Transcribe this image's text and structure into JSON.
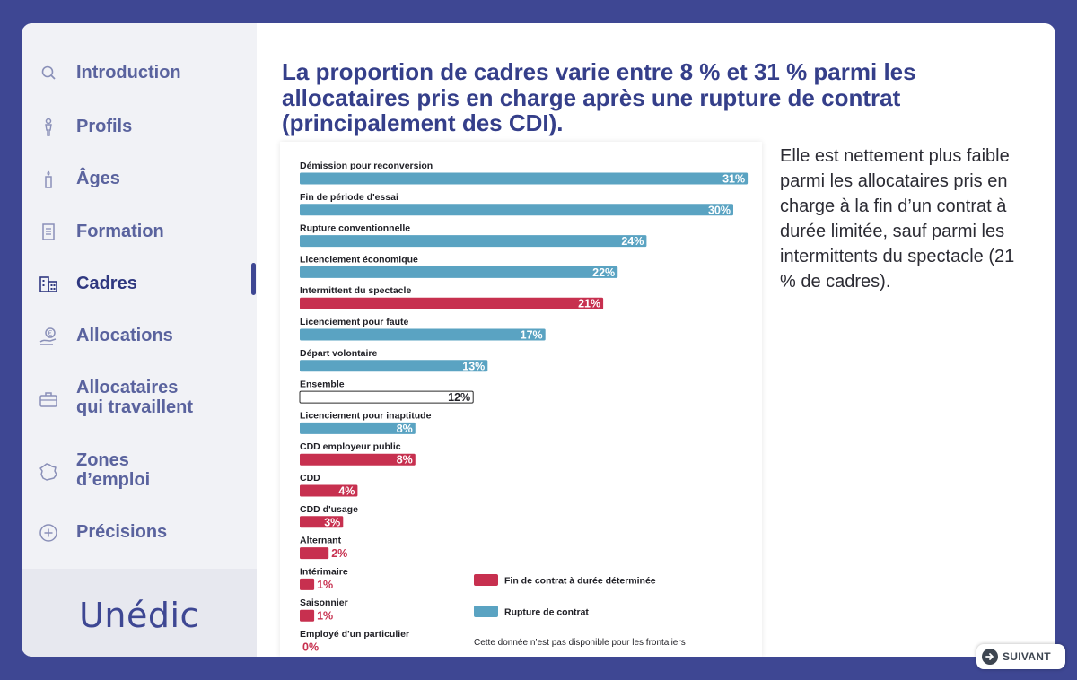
{
  "sidebar": {
    "items": [
      {
        "label_lines": [
          "Introduction"
        ],
        "icon": "magnifier-icon",
        "active": false
      },
      {
        "label_lines": [
          "Profils"
        ],
        "icon": "person-icon",
        "active": false
      },
      {
        "label_lines": [
          "Âges"
        ],
        "icon": "candle-icon",
        "active": false
      },
      {
        "label_lines": [
          "Formation"
        ],
        "icon": "document-icon",
        "active": false
      },
      {
        "label_lines": [
          "Cadres"
        ],
        "icon": "building-icon",
        "active": true
      },
      {
        "label_lines": [
          "Allocations"
        ],
        "icon": "euro-hand-icon",
        "active": false
      },
      {
        "label_lines": [
          "Allocataires",
          "qui travaillent"
        ],
        "icon": "briefcase-icon",
        "active": false
      },
      {
        "label_lines": [
          "Zones",
          "d’emploi"
        ],
        "icon": "france-map-icon",
        "active": false
      },
      {
        "label_lines": [
          "Précisions"
        ],
        "icon": "plus-circle-icon",
        "active": false
      }
    ],
    "logo_text": "Unédic"
  },
  "title": "La proportion de cadres varie entre 8 % et 31 % parmi les allocataires pris en charge après une rupture de contrat (principalement des CDI).",
  "side_text": "Elle est nettement plus faible parmi les allocataires pris en charge à la fin d’un contrat à durée limitée, sauf parmi les intermittents du spectacle (21 % de cadres).",
  "next_button": {
    "label": "SUIVANT",
    "icon": "arrow-right-circle-icon"
  },
  "colors": {
    "fin_cdd": "#c7304f",
    "rupture": "#5aa3c2",
    "ensemble": "#ffffff",
    "title": "#353f8a"
  },
  "chart_data": {
    "type": "bar",
    "orientation": "horizontal",
    "unit": "%",
    "xlim": [
      0,
      31
    ],
    "categories": [
      "Démission pour reconversion",
      "Fin de période d'essai",
      "Rupture conventionnelle",
      "Licenciement économique",
      "Intermittent du spectacle",
      "Licenciement pour faute",
      "Départ volontaire",
      "Ensemble",
      "Licenciement pour inaptitude",
      "CDD employeur public",
      "CDD",
      "CDD d'usage",
      "Alternant",
      "Intérimaire",
      "Saisonnier",
      "Employé d'un particulier"
    ],
    "values": [
      31,
      30,
      24,
      22,
      21,
      17,
      13,
      12,
      8,
      8,
      4,
      3,
      2,
      1,
      1,
      0
    ],
    "value_labels": [
      "31%",
      "30%",
      "24%",
      "22%",
      "21%",
      "17%",
      "13%",
      "12%",
      "8%",
      "8%",
      "4%",
      "3%",
      "2%",
      "1%",
      "1%",
      "0%"
    ],
    "groups": [
      "rupture",
      "rupture",
      "rupture",
      "rupture",
      "fin_cdd",
      "rupture",
      "rupture",
      "ensemble",
      "rupture",
      "fin_cdd",
      "fin_cdd",
      "fin_cdd",
      "fin_cdd",
      "fin_cdd",
      "fin_cdd",
      "fin_cdd"
    ],
    "legend": [
      {
        "group": "fin_cdd",
        "label": "Fin de contrat à durée déterminée"
      },
      {
        "group": "rupture",
        "label": "Rupture de contrat"
      }
    ],
    "legend_placement": "bottom-right",
    "note": "Cette donnée n’est pas disponible pour les frontaliers"
  }
}
